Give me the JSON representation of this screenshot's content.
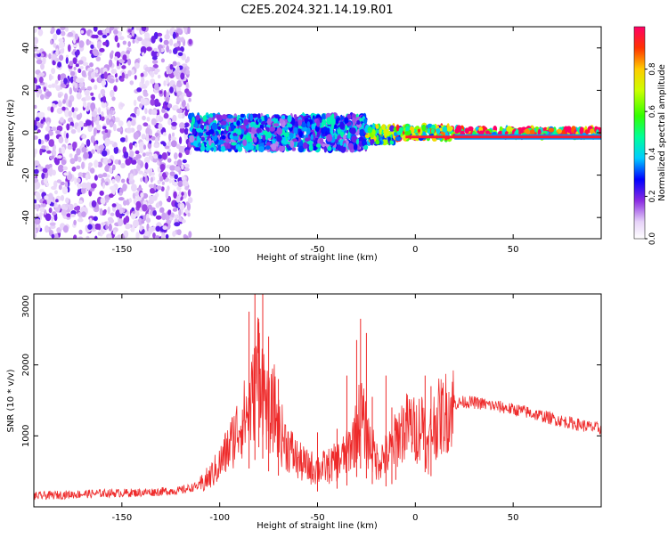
{
  "title": "C2E5.2024.321.14.19.R01",
  "chart_data": [
    {
      "type": "heatmap",
      "title": "C2E5.2024.321.14.19.R01",
      "xlabel": "Height of straight line (km)",
      "ylabel": "Frequency (Hz)",
      "xlim": [
        -195,
        95
      ],
      "ylim": [
        -50,
        50
      ],
      "x_ticks": [
        -150,
        -100,
        -50,
        0,
        50
      ],
      "y_ticks": [
        -40,
        -20,
        0,
        20,
        40
      ],
      "grid": false,
      "colorbar": {
        "label": "Normalized spectral amplitude",
        "range": [
          0,
          1
        ],
        "ticks": [
          "0.0",
          "0.2",
          "0.4",
          "0.6",
          "0.8"
        ]
      },
      "regions": [
        {
          "x_range": [
            -195,
            -115
          ],
          "freq_range": [
            -50,
            50
          ],
          "amplitude": 0.1
        },
        {
          "x_range": [
            -115,
            -25
          ],
          "freq_range": [
            -8,
            8
          ],
          "amplitude": 0.35
        },
        {
          "x_range": [
            -25,
            -10
          ],
          "freq_range": [
            -5,
            3
          ],
          "amplitude": 0.6
        },
        {
          "x_range": [
            -10,
            20
          ],
          "freq_range": [
            -3,
            3
          ],
          "amplitude": 0.75
        },
        {
          "x_range": [
            20,
            95
          ],
          "freq_range": [
            -2,
            2
          ],
          "amplitude": 0.95
        }
      ]
    },
    {
      "type": "line",
      "xlabel": "Height of straight line (km)",
      "ylabel": "SNR (10 * v/v)",
      "xlim": [
        -195,
        95
      ],
      "ylim": [
        0,
        3000
      ],
      "x_ticks": [
        -150,
        -100,
        -50,
        0,
        50
      ],
      "y_ticks": [
        1000,
        2000,
        3000
      ],
      "grid": false,
      "color": "#ee2a2a",
      "series": [
        {
          "x": [
            -195,
            -180,
            -160,
            -140,
            -120,
            -110,
            -105,
            -100,
            -95,
            -90,
            -85,
            -82,
            -80,
            -78,
            -75,
            -72,
            -70,
            -65,
            -60,
            -55,
            -50,
            -45,
            -40,
            -35,
            -30,
            -28,
            -25,
            -22,
            -20,
            -15,
            -12,
            -10,
            -8,
            -5,
            -2,
            0,
            3,
            5,
            6,
            8,
            10,
            12,
            15,
            18,
            20,
            25,
            30,
            35,
            40,
            45,
            50,
            55,
            60,
            65,
            70,
            75,
            80,
            85,
            90,
            95
          ],
          "y": [
            150,
            170,
            190,
            200,
            230,
            300,
            420,
            600,
            850,
            1150,
            1350,
            1650,
            2100,
            1700,
            1250,
            1400,
            1100,
            850,
            650,
            560,
            540,
            560,
            640,
            750,
            1050,
            1350,
            1000,
            800,
            650,
            720,
            800,
            950,
            1050,
            1120,
            1150,
            1050,
            1180,
            1220,
            700,
            1080,
            1180,
            1250,
            1320,
            1400,
            1450,
            1480,
            1470,
            1450,
            1420,
            1400,
            1370,
            1350,
            1310,
            1280,
            1240,
            1210,
            1180,
            1150,
            1120,
            1100
          ]
        }
      ],
      "spikes": [
        {
          "x": -85,
          "y": 2750
        },
        {
          "x": -82,
          "y": 3000
        },
        {
          "x": -80,
          "y": 2600
        },
        {
          "x": -78,
          "y": 3000
        },
        {
          "x": -75,
          "y": 2400
        },
        {
          "x": -70,
          "y": 1800
        },
        {
          "x": -50,
          "y": 1050
        },
        {
          "x": -40,
          "y": 1100
        },
        {
          "x": -35,
          "y": 1850
        },
        {
          "x": -30,
          "y": 2350
        },
        {
          "x": -28,
          "y": 2650
        },
        {
          "x": -25,
          "y": 2450
        },
        {
          "x": -22,
          "y": 1550
        },
        {
          "x": -15,
          "y": 1850
        },
        {
          "x": -12,
          "y": 1400
        },
        {
          "x": -10,
          "y": 1250
        },
        {
          "x": 5,
          "y": 1850
        },
        {
          "x": 8,
          "y": 1700
        }
      ]
    }
  ]
}
